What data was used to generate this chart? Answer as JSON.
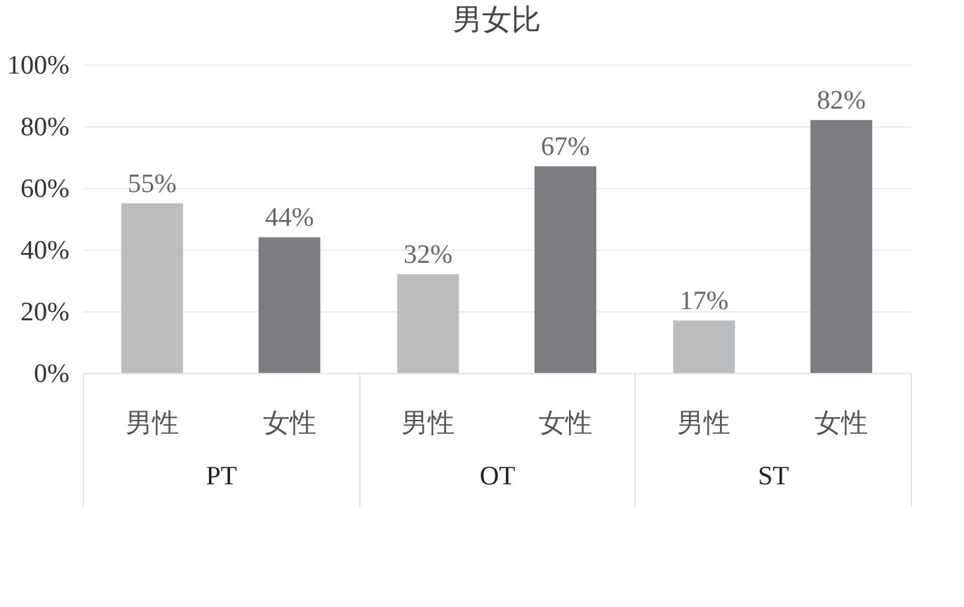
{
  "chart_data": {
    "type": "bar",
    "title": "男女比",
    "categories": [
      "PT",
      "OT",
      "ST"
    ],
    "series": [
      {
        "name": "男性",
        "color": "#bcbdbf",
        "values": [
          55,
          32,
          17
        ],
        "value_labels": [
          "55%",
          "32%",
          "17%"
        ]
      },
      {
        "name": "女性",
        "color": "#7c7d80",
        "values": [
          44,
          67,
          82
        ],
        "value_labels": [
          "44%",
          "67%",
          "82%"
        ]
      }
    ],
    "ylim": [
      0,
      100
    ],
    "yticks": [
      {
        "value": 0,
        "label": "0%"
      },
      {
        "value": 20,
        "label": "20%"
      },
      {
        "value": 40,
        "label": "40%"
      },
      {
        "value": 60,
        "label": "60%"
      },
      {
        "value": 80,
        "label": "80%"
      },
      {
        "value": 100,
        "label": "100%"
      }
    ],
    "grid": "y",
    "legend": false
  }
}
